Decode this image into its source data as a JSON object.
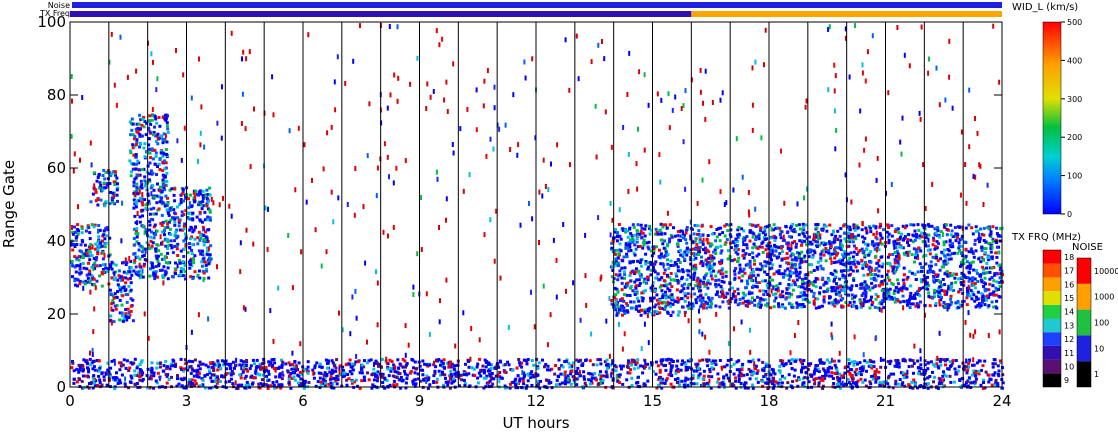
{
  "chart_data": {
    "type": "heatmap",
    "xlabel": "UT hours",
    "ylabel": "Range Gate",
    "xlim": [
      0,
      24
    ],
    "ylim": [
      0,
      100
    ],
    "x_ticks": [
      "0",
      "3",
      "6",
      "9",
      "12",
      "15",
      "18",
      "21",
      "24"
    ],
    "y_ticks": [
      "0",
      "20",
      "40",
      "60",
      "80",
      "100"
    ],
    "top_strips": {
      "noise_label": "Noise",
      "txfreq_label": "TX Freq",
      "noise_color": "#2020e0",
      "txfreq_segments": [
        {
          "from": 0,
          "to": 16,
          "color": "#3010b0"
        },
        {
          "from": 16,
          "to": 24,
          "color": "#ffa500"
        }
      ]
    },
    "colorbars": {
      "width": {
        "title": "WID_L (km/s)",
        "ticks": [
          "0",
          "100",
          "200",
          "300",
          "400",
          "500"
        ],
        "range": [
          0,
          500
        ]
      },
      "txfreq": {
        "title": "TX FRQ (MHz)",
        "ticks": [
          "9",
          "10",
          "11",
          "12",
          "13",
          "14",
          "15",
          "16",
          "17",
          "18"
        ],
        "colors": [
          "#000000",
          "#5a1070",
          "#3010b0",
          "#2040ff",
          "#20c8d0",
          "#20d040",
          "#e0e000",
          "#ffa000",
          "#ff5000",
          "#ff0000"
        ]
      },
      "noise": {
        "title": "NOISE",
        "ticks": [
          "1",
          "10",
          "100",
          "1000",
          "10000"
        ],
        "colors": [
          "#000000",
          "#2020e0",
          "#20c040",
          "#ffa000",
          "#ff0000"
        ]
      }
    },
    "regions": [
      {
        "name": "band-a",
        "x": [
          0,
          1.0
        ],
        "y": [
          28,
          45
        ]
      },
      {
        "name": "band-b",
        "x": [
          1.0,
          1.6
        ],
        "y": [
          18,
          35
        ]
      },
      {
        "name": "band-c",
        "x": [
          1.6,
          3.6
        ],
        "y": [
          30,
          55
        ]
      },
      {
        "name": "band-d",
        "x": [
          0.5,
          1.2
        ],
        "y": [
          50,
          60
        ]
      },
      {
        "name": "band-e",
        "x": [
          1.5,
          2.5
        ],
        "y": [
          55,
          75
        ]
      },
      {
        "name": "band-f",
        "x": [
          13.9,
          16.0
        ],
        "y": [
          20,
          45
        ]
      },
      {
        "name": "band-g",
        "x": [
          16.0,
          24.0
        ],
        "y": [
          22,
          45
        ]
      },
      {
        "name": "ground-scatter",
        "x": [
          0,
          24
        ],
        "y": [
          0,
          8
        ]
      }
    ],
    "vertical_lines_hours": [
      1,
      2,
      3,
      4,
      5,
      6,
      7,
      8,
      9,
      10,
      11,
      12,
      13,
      14,
      15,
      16,
      17,
      18,
      19,
      20,
      21,
      22,
      23
    ]
  }
}
